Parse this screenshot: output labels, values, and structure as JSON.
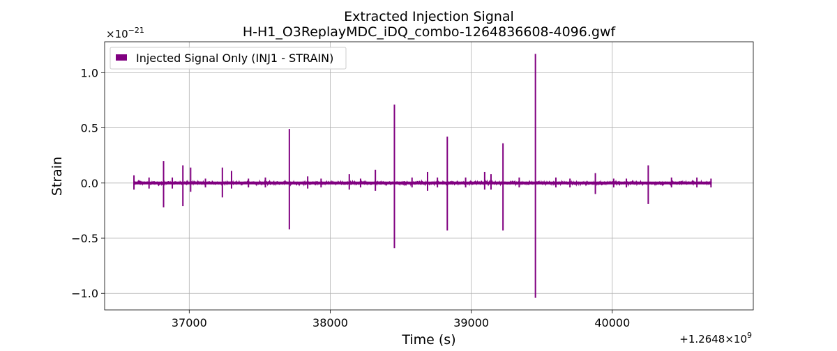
{
  "chart_data": {
    "type": "line",
    "title": "Extracted Injection Signal",
    "subtitle": "H-H1_O3ReplayMDC_iDQ_combo-1264836608-4096.gwf",
    "xlabel": "Time (s)",
    "ylabel": "Strain",
    "x_offset_label": "+1.2648×10",
    "x_offset_exponent": "9",
    "y_scale_label": "×10",
    "y_scale_exponent": "−21",
    "xlim": [
      36400,
      41000
    ],
    "ylim": [
      -1.15,
      1.28
    ],
    "x_ticks": [
      37000,
      38000,
      39000,
      40000
    ],
    "x_tick_labels": [
      "37000",
      "38000",
      "39000",
      "40000"
    ],
    "y_ticks": [
      -1.0,
      -0.5,
      0.0,
      0.5,
      1.0
    ],
    "y_tick_labels": [
      "−1.0",
      "−0.5",
      "0.0",
      "0.5",
      "1.0"
    ],
    "grid": true,
    "legend_position": "top-left",
    "color": "#800080",
    "series": [
      {
        "name": "Injected Signal Only (INJ1 - STRAIN)",
        "x_range": [
          36608,
          40704
        ],
        "noise_amplitude": 0.012,
        "spikes": [
          {
            "x": 36608,
            "max": 0.07,
            "min": -0.06
          },
          {
            "x": 36715,
            "max": 0.05,
            "min": -0.05
          },
          {
            "x": 36818,
            "max": 0.2,
            "min": -0.22
          },
          {
            "x": 36880,
            "max": 0.05,
            "min": -0.05
          },
          {
            "x": 36955,
            "max": 0.16,
            "min": -0.21
          },
          {
            "x": 37010,
            "max": 0.14,
            "min": -0.08
          },
          {
            "x": 37115,
            "max": 0.04,
            "min": -0.04
          },
          {
            "x": 37235,
            "max": 0.14,
            "min": -0.13
          },
          {
            "x": 37300,
            "max": 0.11,
            "min": -0.05
          },
          {
            "x": 37420,
            "max": 0.04,
            "min": -0.04
          },
          {
            "x": 37540,
            "max": 0.05,
            "min": -0.04
          },
          {
            "x": 37710,
            "max": 0.49,
            "min": -0.42
          },
          {
            "x": 37840,
            "max": 0.06,
            "min": -0.05
          },
          {
            "x": 37935,
            "max": 0.04,
            "min": -0.04
          },
          {
            "x": 38135,
            "max": 0.08,
            "min": -0.06
          },
          {
            "x": 38215,
            "max": 0.04,
            "min": -0.04
          },
          {
            "x": 38320,
            "max": 0.12,
            "min": -0.07
          },
          {
            "x": 38455,
            "max": 0.71,
            "min": -0.59
          },
          {
            "x": 38580,
            "max": 0.05,
            "min": -0.04
          },
          {
            "x": 38690,
            "max": 0.1,
            "min": -0.07
          },
          {
            "x": 38760,
            "max": 0.05,
            "min": -0.04
          },
          {
            "x": 38830,
            "max": 0.42,
            "min": -0.43
          },
          {
            "x": 38960,
            "max": 0.05,
            "min": -0.04
          },
          {
            "x": 39095,
            "max": 0.1,
            "min": -0.06
          },
          {
            "x": 39140,
            "max": 0.08,
            "min": -0.06
          },
          {
            "x": 39225,
            "max": 0.36,
            "min": -0.43
          },
          {
            "x": 39340,
            "max": 0.05,
            "min": -0.04
          },
          {
            "x": 39455,
            "max": 1.17,
            "min": -1.04
          },
          {
            "x": 39600,
            "max": 0.05,
            "min": -0.04
          },
          {
            "x": 39700,
            "max": 0.04,
            "min": -0.04
          },
          {
            "x": 39880,
            "max": 0.09,
            "min": -0.1
          },
          {
            "x": 40010,
            "max": 0.04,
            "min": -0.04
          },
          {
            "x": 40100,
            "max": 0.04,
            "min": -0.04
          },
          {
            "x": 40255,
            "max": 0.16,
            "min": -0.19
          },
          {
            "x": 40420,
            "max": 0.05,
            "min": -0.04
          },
          {
            "x": 40600,
            "max": 0.05,
            "min": -0.04
          },
          {
            "x": 40700,
            "max": 0.04,
            "min": -0.04
          }
        ]
      }
    ]
  }
}
